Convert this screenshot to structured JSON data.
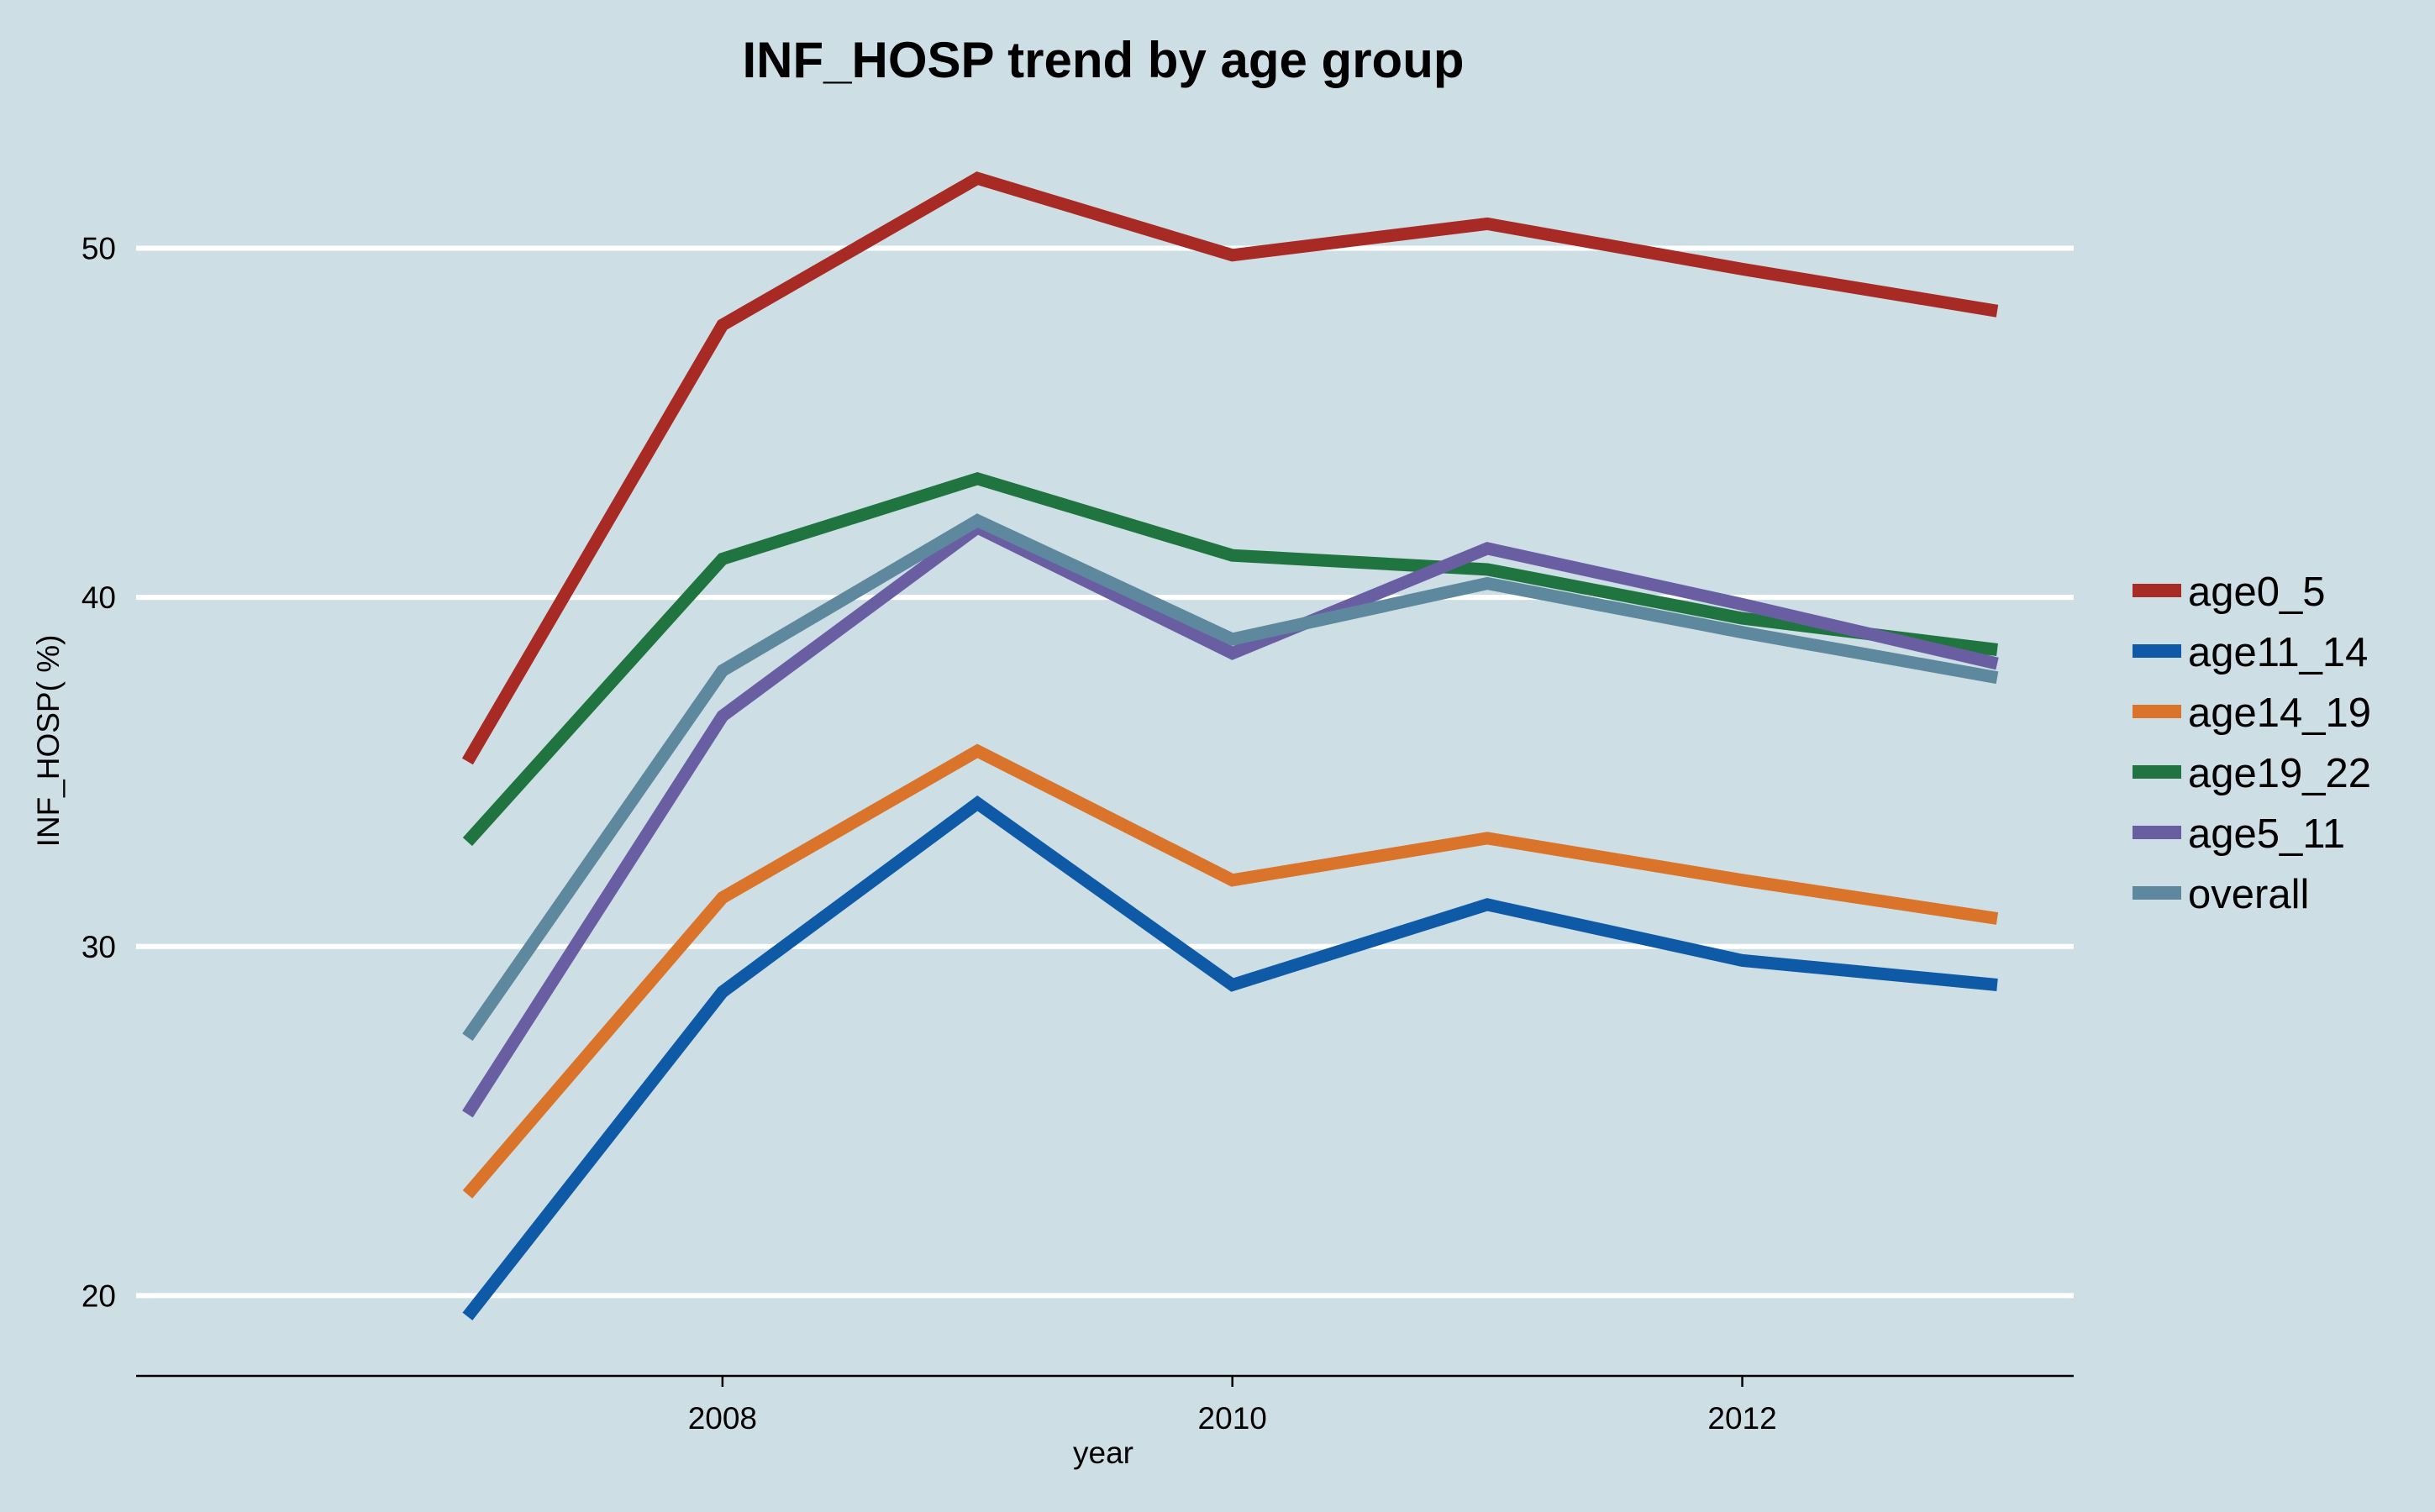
{
  "chart_data": {
    "type": "line",
    "title": "INF_HOSP trend by age group",
    "xlabel": "year",
    "ylabel": "INF_HOSP( %)",
    "x": [
      2007,
      2008,
      2009,
      2010,
      2011,
      2012,
      2013
    ],
    "xlim": [
      2005.7,
      2013.3
    ],
    "ylim": [
      17.7,
      53.5
    ],
    "xticks": [
      2008,
      2010,
      2012
    ],
    "yticks": [
      20,
      30,
      40,
      50
    ],
    "grid": "horizontal",
    "legend_position": "right",
    "background": "#cddfe5",
    "series": [
      {
        "name": "age0_5",
        "color": "#a82a25",
        "values": [
          35.3,
          47.8,
          52.0,
          49.8,
          50.7,
          49.4,
          48.2
        ]
      },
      {
        "name": "age11_14",
        "color": "#0e5aa6",
        "values": [
          19.4,
          28.7,
          34.1,
          28.9,
          31.2,
          29.6,
          28.9
        ]
      },
      {
        "name": "age14_19",
        "color": "#d9742a",
        "values": [
          22.9,
          31.4,
          35.6,
          31.9,
          33.1,
          31.9,
          30.8
        ]
      },
      {
        "name": "age19_22",
        "color": "#1f7440",
        "values": [
          33.0,
          41.1,
          43.4,
          41.2,
          40.8,
          39.4,
          38.5
        ]
      },
      {
        "name": "age5_11",
        "color": "#6a5ea2",
        "values": [
          25.2,
          36.6,
          42.0,
          38.4,
          41.4,
          39.8,
          38.1
        ]
      },
      {
        "name": "overall",
        "color": "#5e889d",
        "values": [
          27.4,
          37.9,
          42.2,
          38.8,
          40.4,
          39.0,
          37.7
        ]
      }
    ]
  }
}
